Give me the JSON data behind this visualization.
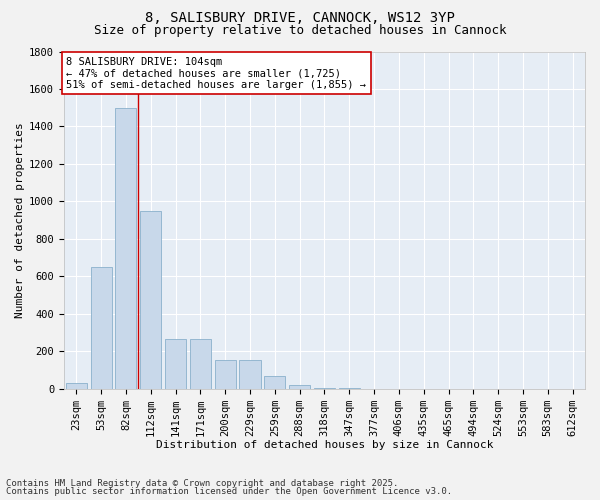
{
  "title1": "8, SALISBURY DRIVE, CANNOCK, WS12 3YP",
  "title2": "Size of property relative to detached houses in Cannock",
  "xlabel": "Distribution of detached houses by size in Cannock",
  "ylabel": "Number of detached properties",
  "categories": [
    "23sqm",
    "53sqm",
    "82sqm",
    "112sqm",
    "141sqm",
    "171sqm",
    "200sqm",
    "229sqm",
    "259sqm",
    "288sqm",
    "318sqm",
    "347sqm",
    "377sqm",
    "406sqm",
    "435sqm",
    "465sqm",
    "494sqm",
    "524sqm",
    "553sqm",
    "583sqm",
    "612sqm"
  ],
  "values": [
    30,
    650,
    1500,
    950,
    265,
    265,
    155,
    155,
    65,
    18,
    5,
    1,
    0,
    0,
    0,
    0,
    0,
    0,
    0,
    0,
    0
  ],
  "bar_color": "#c8d8ea",
  "bar_edge_color": "#8ab0cc",
  "background_color": "#e6edf5",
  "fig_background": "#f2f2f2",
  "vline_x": 2.5,
  "vline_color": "#cc0000",
  "annotation_text": "8 SALISBURY DRIVE: 104sqm\n← 47% of detached houses are smaller (1,725)\n51% of semi-detached houses are larger (1,855) →",
  "annotation_box_facecolor": "#ffffff",
  "annotation_box_edgecolor": "#cc0000",
  "ylim": [
    0,
    1800
  ],
  "yticks": [
    0,
    200,
    400,
    600,
    800,
    1000,
    1200,
    1400,
    1600,
    1800
  ],
  "title1_fontsize": 10,
  "title2_fontsize": 9,
  "axis_label_fontsize": 8,
  "tick_fontsize": 7.5,
  "annotation_fontsize": 7.5,
  "footer_fontsize": 6.5,
  "footer1": "Contains HM Land Registry data © Crown copyright and database right 2025.",
  "footer2": "Contains public sector information licensed under the Open Government Licence v3.0."
}
